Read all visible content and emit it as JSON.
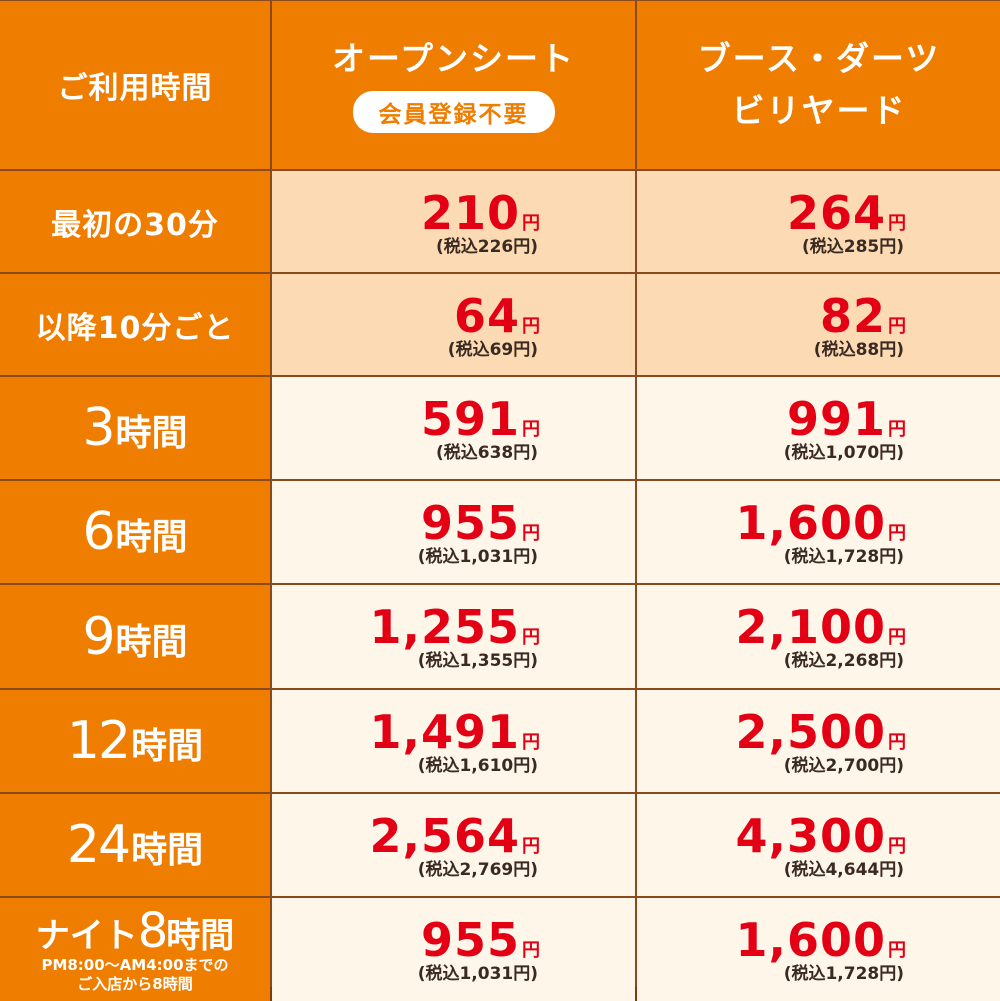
{
  "header": {
    "col0": "ご利用時間",
    "col1_title": "オープンシート",
    "col1_badge": "会員登録不要",
    "col2_line1": "ブース・ダーツ",
    "col2_line2": "ビリヤード"
  },
  "rows": [
    {
      "label": "最初の30分",
      "open": {
        "price": "210",
        "tax": "(税込226円)"
      },
      "booth": {
        "price": "264",
        "tax": "(税込285円)"
      }
    },
    {
      "label": "以降10分ごと",
      "open": {
        "price": "64",
        "tax": "(税込69円)"
      },
      "booth": {
        "price": "82",
        "tax": "(税込88円)"
      }
    },
    {
      "num": "3",
      "unit": "時間",
      "open": {
        "price": "591",
        "tax": "(税込638円)"
      },
      "booth": {
        "price": "991",
        "tax": "(税込1,070円)"
      }
    },
    {
      "num": "6",
      "unit": "時間",
      "open": {
        "price": "955",
        "tax": "(税込1,031円)"
      },
      "booth": {
        "price": "1,600",
        "tax": "(税込1,728円)"
      }
    },
    {
      "num": "9",
      "unit": "時間",
      "open": {
        "price": "1,255",
        "tax": "(税込1,355円)"
      },
      "booth": {
        "price": "2,100",
        "tax": "(税込2,268円)"
      }
    },
    {
      "num": "12",
      "unit": "時間",
      "open": {
        "price": "1,491",
        "tax": "(税込1,610円)"
      },
      "booth": {
        "price": "2,500",
        "tax": "(税込2,700円)"
      }
    },
    {
      "num": "24",
      "unit": "時間",
      "open": {
        "price": "2,564",
        "tax": "(税込2,769円)"
      },
      "booth": {
        "price": "4,300",
        "tax": "(税込4,644円)"
      }
    },
    {
      "prefix": "ナイト",
      "num": "8",
      "unit": "時間",
      "note1": "PM8:00～AM4:00までの",
      "note2": "ご入店から8時間",
      "open": {
        "price": "955",
        "tax": "(税込1,031円)"
      },
      "booth": {
        "price": "1,600",
        "tax": "(税込1,728円)"
      }
    }
  ],
  "currency": "円",
  "colors": {
    "orange": "#ef7d00",
    "peach": "#fcdbb4",
    "cream": "#fff6ea",
    "price_red": "#e40014",
    "border": "#8a4a1e"
  }
}
